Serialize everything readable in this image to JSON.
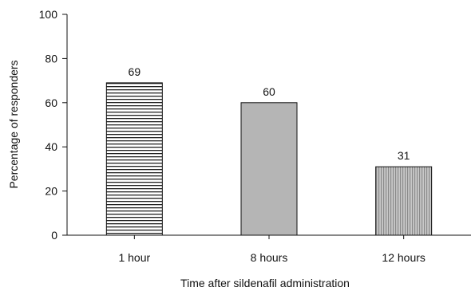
{
  "chart_data": {
    "type": "bar",
    "categories": [
      "1 hour",
      "8 hours",
      "12 hours"
    ],
    "values": [
      69,
      60,
      31
    ],
    "data_labels": [
      "69",
      "60",
      "31"
    ],
    "xlabel": "Time after sildenafil administration",
    "ylabel": "Percentage of responders",
    "ylim": [
      0,
      100
    ],
    "yticks": [
      "0",
      "20",
      "40",
      "60",
      "80",
      "100"
    ],
    "grid": false,
    "bar_fills": [
      "horizontal-stripes",
      "solid-gray",
      "vertical-stripes"
    ],
    "colors": {
      "axis": "#111111",
      "bar_stroke": "#111111",
      "gray": "#b5b5b5",
      "stripe_dark": "#222222",
      "stripe_light": "#ffffff",
      "vstripe_light": "#c8c8c8",
      "vstripe_dark": "#8a8a8a"
    }
  }
}
